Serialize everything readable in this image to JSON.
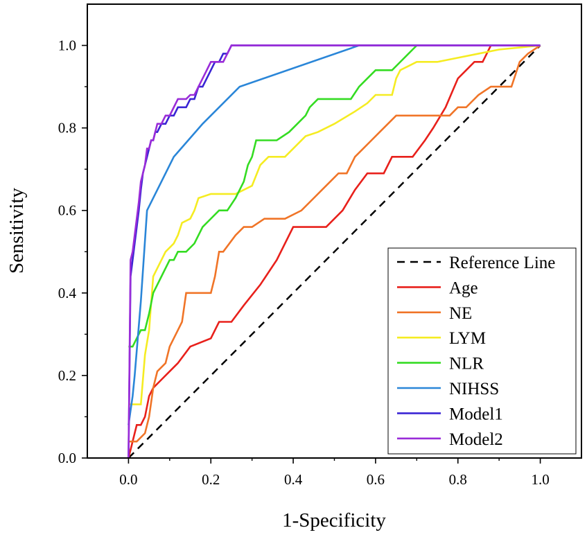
{
  "chart_data": {
    "type": "line",
    "title": "",
    "xlabel": "1-Specificity",
    "ylabel": "Sensitivity",
    "xlim": [
      -0.1,
      1.1
    ],
    "ylim": [
      0.0,
      1.1
    ],
    "xticks": [
      0.0,
      0.2,
      0.4,
      0.6,
      0.8,
      1.0
    ],
    "yticks": [
      0.0,
      0.2,
      0.4,
      0.6,
      0.8,
      1.0
    ],
    "xtick_labels": [
      "0.0",
      "0.2",
      "0.4",
      "0.6",
      "0.8",
      "1.0"
    ],
    "ytick_labels": [
      "0.0",
      "0.2",
      "0.4",
      "0.6",
      "0.8",
      "1.0"
    ],
    "grid": false,
    "legend_position": "bottom-right",
    "series": [
      {
        "name": "Reference Line",
        "color": "#000000",
        "dashed": true,
        "x": [
          0,
          1
        ],
        "y": [
          0,
          1
        ]
      },
      {
        "name": "Age",
        "color": "#e8201b",
        "dashed": false,
        "x": [
          0.0,
          0.01,
          0.02,
          0.03,
          0.04,
          0.05,
          0.06,
          0.08,
          0.1,
          0.12,
          0.15,
          0.2,
          0.22,
          0.25,
          0.28,
          0.32,
          0.36,
          0.4,
          0.42,
          0.48,
          0.52,
          0.55,
          0.58,
          0.62,
          0.64,
          0.66,
          0.69,
          0.72,
          0.74,
          0.77,
          0.8,
          0.82,
          0.84,
          0.86,
          0.87,
          0.88
        ],
        "y": [
          0.0,
          0.04,
          0.08,
          0.08,
          0.1,
          0.15,
          0.17,
          0.19,
          0.21,
          0.23,
          0.27,
          0.29,
          0.33,
          0.33,
          0.37,
          0.42,
          0.48,
          0.56,
          0.56,
          0.56,
          0.6,
          0.65,
          0.69,
          0.69,
          0.73,
          0.73,
          0.73,
          0.77,
          0.8,
          0.85,
          0.92,
          0.94,
          0.96,
          0.96,
          0.98,
          1.0
        ]
      },
      {
        "name": "NE",
        "color": "#f07427",
        "dashed": false,
        "x": [
          0.0,
          0.02,
          0.04,
          0.05,
          0.06,
          0.07,
          0.09,
          0.1,
          0.11,
          0.12,
          0.13,
          0.14,
          0.2,
          0.21,
          0.22,
          0.23,
          0.26,
          0.28,
          0.3,
          0.33,
          0.38,
          0.42,
          0.45,
          0.47,
          0.49,
          0.51,
          0.53,
          0.55,
          0.57,
          0.59,
          0.61,
          0.63,
          0.65,
          0.7,
          0.75,
          0.78,
          0.8,
          0.82,
          0.85,
          0.88,
          0.9,
          0.93,
          0.95,
          0.97,
          1.0
        ],
        "y": [
          0.04,
          0.04,
          0.06,
          0.1,
          0.17,
          0.21,
          0.23,
          0.27,
          0.29,
          0.31,
          0.33,
          0.4,
          0.4,
          0.44,
          0.5,
          0.5,
          0.54,
          0.56,
          0.56,
          0.58,
          0.58,
          0.6,
          0.63,
          0.65,
          0.67,
          0.69,
          0.69,
          0.73,
          0.75,
          0.77,
          0.79,
          0.81,
          0.83,
          0.83,
          0.83,
          0.83,
          0.85,
          0.85,
          0.88,
          0.9,
          0.9,
          0.9,
          0.96,
          0.98,
          1.0
        ]
      },
      {
        "name": "LYM",
        "color": "#f5ec22",
        "dashed": false,
        "x": [
          0.0,
          0.03,
          0.04,
          0.05,
          0.06,
          0.07,
          0.08,
          0.09,
          0.11,
          0.12,
          0.13,
          0.15,
          0.16,
          0.17,
          0.2,
          0.26,
          0.3,
          0.32,
          0.34,
          0.38,
          0.4,
          0.43,
          0.46,
          0.5,
          0.55,
          0.58,
          0.6,
          0.62,
          0.64,
          0.65,
          0.66,
          0.68,
          0.7,
          0.75,
          0.8,
          0.85,
          0.9,
          0.95,
          1.0
        ],
        "y": [
          0.13,
          0.13,
          0.25,
          0.31,
          0.44,
          0.46,
          0.48,
          0.5,
          0.52,
          0.54,
          0.57,
          0.58,
          0.6,
          0.63,
          0.64,
          0.64,
          0.66,
          0.71,
          0.73,
          0.73,
          0.75,
          0.78,
          0.79,
          0.81,
          0.84,
          0.86,
          0.88,
          0.88,
          0.88,
          0.92,
          0.94,
          0.95,
          0.96,
          0.96,
          0.97,
          0.98,
          0.99,
          0.995,
          1.0
        ]
      },
      {
        "name": "NLR",
        "color": "#34dc22",
        "dashed": false,
        "x": [
          0.0,
          0.01,
          0.02,
          0.03,
          0.04,
          0.05,
          0.06,
          0.07,
          0.08,
          0.09,
          0.1,
          0.11,
          0.12,
          0.14,
          0.16,
          0.17,
          0.18,
          0.2,
          0.22,
          0.24,
          0.26,
          0.27,
          0.28,
          0.29,
          0.3,
          0.31,
          0.34,
          0.36,
          0.39,
          0.41,
          0.43,
          0.44,
          0.46,
          0.5,
          0.54,
          0.56,
          0.58,
          0.6,
          0.62,
          0.64,
          0.66,
          0.68,
          0.69,
          0.7
        ],
        "y": [
          0.27,
          0.27,
          0.29,
          0.31,
          0.31,
          0.35,
          0.4,
          0.42,
          0.44,
          0.46,
          0.48,
          0.48,
          0.5,
          0.5,
          0.52,
          0.54,
          0.56,
          0.58,
          0.6,
          0.6,
          0.63,
          0.65,
          0.67,
          0.71,
          0.73,
          0.77,
          0.77,
          0.77,
          0.79,
          0.81,
          0.83,
          0.85,
          0.87,
          0.87,
          0.87,
          0.9,
          0.92,
          0.94,
          0.94,
          0.94,
          0.96,
          0.98,
          0.99,
          1.0
        ]
      },
      {
        "name": "NIHSS",
        "color": "#2a86d8",
        "dashed": false,
        "x": [
          0.0,
          0.01,
          0.015,
          0.03,
          0.045,
          0.08,
          0.11,
          0.18,
          0.27,
          0.56,
          1.0
        ],
        "y": [
          0.08,
          0.15,
          0.2,
          0.38,
          0.6,
          0.67,
          0.73,
          0.81,
          0.9,
          1.0,
          1.0
        ]
      },
      {
        "name": "Model1",
        "color": "#3a24d4",
        "dashed": false,
        "x": [
          0.0,
          0.005,
          0.01,
          0.015,
          0.02,
          0.025,
          0.03,
          0.035,
          0.04,
          0.045,
          0.05,
          0.055,
          0.06,
          0.065,
          0.07,
          0.08,
          0.09,
          0.1,
          0.11,
          0.12,
          0.13,
          0.14,
          0.15,
          0.16,
          0.17,
          0.18,
          0.19,
          0.2,
          0.21,
          0.22,
          0.23,
          0.24,
          0.25,
          0.27,
          0.3,
          0.5,
          1.0
        ],
        "y": [
          0.0,
          0.44,
          0.48,
          0.52,
          0.56,
          0.6,
          0.65,
          0.69,
          0.71,
          0.73,
          0.75,
          0.77,
          0.77,
          0.79,
          0.79,
          0.81,
          0.81,
          0.83,
          0.83,
          0.85,
          0.85,
          0.85,
          0.87,
          0.87,
          0.9,
          0.9,
          0.92,
          0.94,
          0.96,
          0.96,
          0.98,
          0.98,
          1.0,
          1.0,
          1.0,
          1.0,
          1.0
        ]
      },
      {
        "name": "Model2",
        "color": "#9a2cd8",
        "dashed": false,
        "x": [
          0.0,
          0.005,
          0.01,
          0.015,
          0.02,
          0.025,
          0.03,
          0.035,
          0.04,
          0.045,
          0.05,
          0.055,
          0.06,
          0.065,
          0.07,
          0.08,
          0.09,
          0.1,
          0.11,
          0.12,
          0.13,
          0.14,
          0.15,
          0.16,
          0.17,
          0.18,
          0.19,
          0.2,
          0.21,
          0.22,
          0.23,
          0.24,
          0.25,
          0.27,
          0.3,
          0.5,
          1.0
        ],
        "y": [
          0.0,
          0.48,
          0.5,
          0.54,
          0.58,
          0.62,
          0.67,
          0.69,
          0.71,
          0.75,
          0.75,
          0.77,
          0.77,
          0.79,
          0.81,
          0.81,
          0.83,
          0.83,
          0.85,
          0.87,
          0.87,
          0.87,
          0.88,
          0.88,
          0.9,
          0.92,
          0.94,
          0.96,
          0.96,
          0.96,
          0.96,
          0.98,
          1.0,
          1.0,
          1.0,
          1.0,
          1.0
        ]
      }
    ]
  }
}
